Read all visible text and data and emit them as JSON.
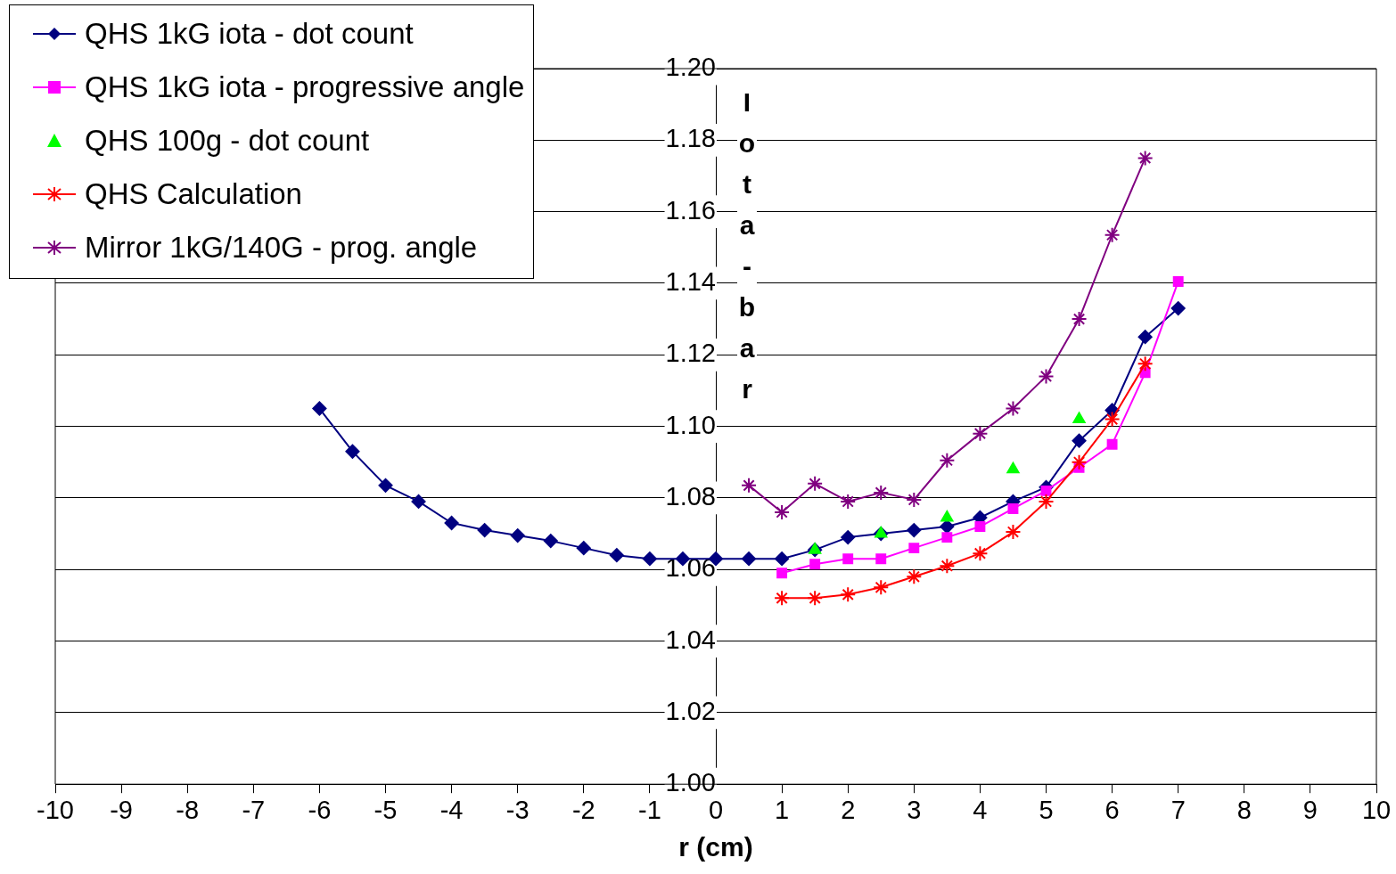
{
  "chart_data": {
    "type": "line",
    "xlabel": "r (cm)",
    "ylabel": "Iota-bar",
    "legend": "top left",
    "grid": "y",
    "xlim": [
      -10,
      10
    ],
    "xticks": [
      -10,
      -9,
      -8,
      -7,
      -6,
      -5,
      -4,
      -3,
      -2,
      -1,
      0,
      1,
      2,
      3,
      4,
      5,
      6,
      7,
      8,
      9,
      10
    ],
    "ylim": [
      1,
      1.2
    ],
    "yticks": [
      {
        "value": 1,
        "label": "1.00"
      },
      {
        "value": 1.02,
        "label": "1.02"
      },
      {
        "value": 1.04,
        "label": "1.04"
      },
      {
        "value": 1.06,
        "label": "1.06"
      },
      {
        "value": 1.08,
        "label": "1.08"
      },
      {
        "value": 1.1,
        "label": "1.10"
      },
      {
        "value": 1.12,
        "label": "1.12"
      },
      {
        "value": 1.14,
        "label": "1.14"
      },
      {
        "value": 1.16,
        "label": "1.16"
      },
      {
        "value": 1.18,
        "label": "1.18"
      },
      {
        "value": 1.2,
        "label": "1.20"
      }
    ],
    "series": [
      {
        "name": "QHS 1kG iota - dot count",
        "color": "#000080",
        "marker": "diamond",
        "x": [
          -6,
          -5.5,
          -5,
          -4.5,
          -4,
          -3.5,
          -3,
          -2.5,
          -2,
          -1.5,
          -1,
          -0.5,
          0,
          0.5,
          1,
          1.5,
          2,
          2.5,
          3,
          3.5,
          4,
          4.5,
          5,
          5.5,
          6,
          6.5,
          7
        ],
        "values": [
          1.105,
          1.093,
          1.0835,
          1.079,
          1.073,
          1.071,
          1.0695,
          1.068,
          1.066,
          1.064,
          1.063,
          1.063,
          1.063,
          1.063,
          1.063,
          1.0655,
          1.069,
          1.07,
          1.071,
          1.072,
          1.0745,
          1.079,
          1.083,
          1.096,
          1.1045,
          1.125,
          1.133
        ]
      },
      {
        "name": "QHS 1kG iota - progressive angle",
        "color": "#ff00ff",
        "marker": "square",
        "x": [
          1,
          1.5,
          2,
          2.5,
          3,
          3.5,
          4,
          4.5,
          5,
          5.5,
          6,
          6.5,
          7
        ],
        "values": [
          1.059,
          1.0615,
          1.063,
          1.063,
          1.066,
          1.069,
          1.072,
          1.077,
          1.082,
          1.0885,
          1.095,
          1.115,
          1.1405
        ]
      },
      {
        "name": "QHS 100g - dot count",
        "color": "#00ff00",
        "type": "scatter",
        "marker": "triangle",
        "x": [
          1.5,
          2.5,
          3.5,
          4.5,
          5.5
        ],
        "values": [
          1.0655,
          1.07,
          1.0745,
          1.088,
          1.102
        ]
      },
      {
        "name": "QHS Calculation",
        "color": "#ff0000",
        "marker": "cross",
        "x": [
          1,
          1.5,
          2,
          2.5,
          3,
          3.5,
          4,
          4.5,
          5,
          5.5,
          6,
          6.5
        ],
        "values": [
          1.052,
          1.052,
          1.053,
          1.055,
          1.058,
          1.061,
          1.0645,
          1.0705,
          1.079,
          1.09,
          1.102,
          1.1175
        ]
      },
      {
        "name": "Mirror 1kG/140G - prog. angle",
        "color": "#800080",
        "marker": "cross",
        "x": [
          0.5,
          1,
          1.5,
          2,
          2.5,
          3,
          3.5,
          4,
          4.5,
          5,
          5.5,
          6,
          6.5
        ],
        "values": [
          1.0835,
          1.076,
          1.084,
          1.079,
          1.0815,
          1.0795,
          1.0905,
          1.098,
          1.105,
          1.114,
          1.13,
          1.1535,
          1.175
        ]
      }
    ]
  }
}
